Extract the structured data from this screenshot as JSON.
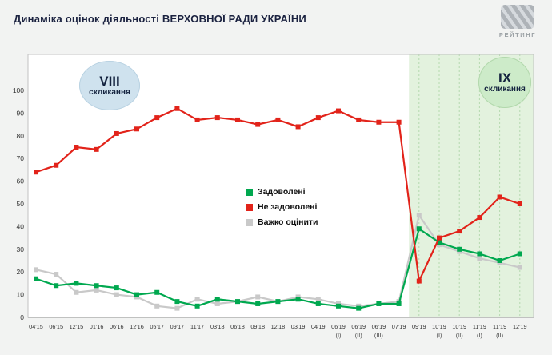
{
  "header": {
    "title": "Динаміка оцінок діяльності ВЕРХОВНОЇ РАДИ УКРАЇНИ",
    "logo": "РЕЙТИНГ"
  },
  "badges": {
    "viii": {
      "line1": "VIII",
      "line2": "скликання"
    },
    "ix": {
      "line1": "ІХ",
      "line2": "скликання"
    }
  },
  "chart_data": {
    "type": "line",
    "title": "Динаміка оцінок діяльності ВЕРХОВНОЇ РАДИ УКРАЇНИ",
    "ylim": [
      0,
      100
    ],
    "y_ticks": [
      0,
      10,
      20,
      30,
      40,
      50,
      60,
      70,
      80,
      90,
      100
    ],
    "grid": "vertical-dashed-in-ix-region",
    "legend_position": "middle-left",
    "x_labels": [
      "04'15",
      "06'15",
      "12'15",
      "01'16",
      "06'16",
      "12'16",
      "05'17",
      "09'17",
      "11'17",
      "03'18",
      "06'18",
      "09'18",
      "12'18",
      "03'19",
      "04'19",
      "06'19",
      "06'19",
      "06'19",
      "07'19",
      "09'19",
      "10'19",
      "10'19",
      "11'19",
      "11'19",
      "12'19"
    ],
    "x_sublabels": [
      "",
      "",
      "",
      "",
      "",
      "",
      "",
      "",
      "",
      "",
      "",
      "",
      "",
      "",
      "",
      "(І)",
      "(ІІ)",
      "(ІІІ)",
      "",
      "",
      "(І)",
      "(ІІ)",
      "(І)",
      "(ІІ)",
      ""
    ],
    "regions": [
      {
        "name": "VIII скликання",
        "from_index": 0,
        "to_index": 18,
        "color": "#ffffff"
      },
      {
        "name": "ІХ скликання",
        "from_index": 19,
        "to_index": 24,
        "color": "#e3f2de"
      }
    ],
    "series": [
      {
        "name": "Задоволені",
        "color": "#00a84f",
        "values": [
          17,
          14,
          15,
          14,
          13,
          10,
          11,
          7,
          5,
          8,
          7,
          6,
          7,
          8,
          6,
          5,
          4,
          6,
          6,
          39,
          33,
          30,
          28,
          25,
          28
        ]
      },
      {
        "name": "Не задоволені",
        "color": "#e2231a",
        "values": [
          64,
          67,
          75,
          74,
          81,
          83,
          88,
          92,
          87,
          88,
          87,
          85,
          87,
          84,
          88,
          91,
          87,
          86,
          86,
          16,
          35,
          38,
          44,
          53,
          50
        ]
      },
      {
        "name": "Важко оцінити",
        "color": "#c9c9c9",
        "values": [
          21,
          19,
          11,
          12,
          10,
          9,
          5,
          4,
          8,
          6,
          7,
          9,
          7,
          9,
          8,
          6,
          5,
          6,
          7,
          45,
          32,
          29,
          26,
          24,
          22
        ]
      }
    ]
  }
}
